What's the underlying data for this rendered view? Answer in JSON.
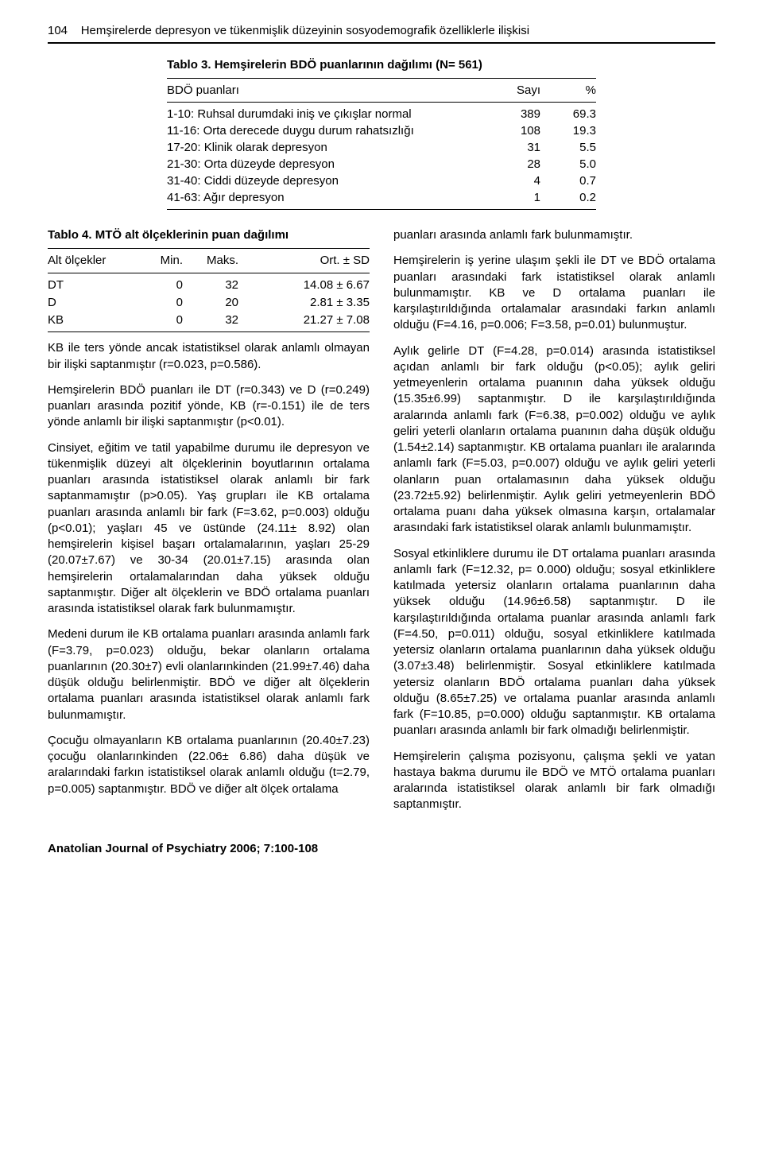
{
  "header": {
    "page_num": "104",
    "title": "Hemşirelerde depresyon ve tükenmişlik düzeyinin sosyodemografik özelliklerle ilişkisi"
  },
  "table3": {
    "title": "Tablo 3. Hemşirelerin BDÖ puanlarının dağılımı (N= 561)",
    "head": {
      "c1": "BDÖ puanları",
      "c2": "Sayı",
      "c3": "%"
    },
    "rows": [
      {
        "label": "1-10: Ruhsal durumdaki iniş ve çıkışlar normal",
        "n": "389",
        "p": "69.3"
      },
      {
        "label": "11-16: Orta derecede duygu durum rahatsızlığı",
        "n": "108",
        "p": "19.3"
      },
      {
        "label": "17-20: Klinik olarak depresyon",
        "n": "31",
        "p": "5.5"
      },
      {
        "label": "21-30: Orta düzeyde depresyon",
        "n": "28",
        "p": "5.0"
      },
      {
        "label": "31-40: Ciddi düzeyde depresyon",
        "n": "4",
        "p": "0.7"
      },
      {
        "label": "41-63: Ağır depresyon",
        "n": "1",
        "p": "0.2"
      }
    ]
  },
  "table4": {
    "title": "Tablo 4. MTÖ alt ölçeklerinin puan dağılımı",
    "head": {
      "c1": "Alt ölçekler",
      "c2": "Min.",
      "c3": "Maks.",
      "c4": "Ort. ± SD"
    },
    "rows": [
      {
        "c1": "DT",
        "c2": "0",
        "c3": "32",
        "c4": "14.08 ± 6.67"
      },
      {
        "c1": "D",
        "c2": "0",
        "c3": "20",
        "c4": "2.81 ± 3.35"
      },
      {
        "c1": "KB",
        "c2": "0",
        "c3": "32",
        "c4": "21.27 ± 7.08"
      }
    ]
  },
  "left_paras": [
    "KB ile ters yönde ancak istatistiksel olarak anlamlı olmayan bir ilişki saptanmıştır (r=0.023, p=0.586).",
    "Hemşirelerin BDÖ puanları ile DT (r=0.343) ve D (r=0.249) puanları arasında pozitif yönde, KB (r=-0.151) ile de ters yönde anlamlı bir ilişki saptanmıştır (p<0.01).",
    "Cinsiyet, eğitim ve tatil yapabilme durumu ile depresyon ve tükenmişlik düzeyi alt ölçeklerinin boyutlarının ortalama puanları arasında istatistiksel olarak anlamlı bir fark saptanmamıştır (p>0.05). Yaş grupları ile KB ortalama puanları arasında anlamlı bir fark (F=3.62, p=0.003) olduğu (p<0.01); yaşları 45 ve üstünde (24.11± 8.92) olan hemşirelerin kişisel başarı ortalamalarının, yaşları 25-29 (20.07±7.67) ve 30-34 (20.01±7.15) arasında olan hemşirelerin ortalamalarından daha yüksek olduğu saptanmıştır. Diğer alt ölçeklerin ve BDÖ ortalama puanları arasında istatistiksel olarak fark bulunmamıştır.",
    "Medeni durum ile KB ortalama puanları arasında anlamlı fark (F=3.79, p=0.023) olduğu, bekar olanların ortalama puanlarının (20.30±7) evli olanlarınkinden (21.99±7.46) daha düşük olduğu belirlenmiştir. BDÖ ve diğer alt ölçeklerin ortalama puanları arasında istatistiksel olarak anlamlı fark bulunmamıştır.",
    "Çocuğu olmayanların KB ortalama puanlarının (20.40±7.23) çocuğu olanlarınkinden (22.06± 6.86) daha düşük ve aralarındaki farkın istatistiksel olarak anlamlı olduğu (t=2.79, p=0.005) saptanmıştır. BDÖ ve diğer alt ölçek ortalama"
  ],
  "right_paras": [
    "puanları arasında anlamlı fark bulunmamıştır.",
    "Hemşirelerin iş yerine ulaşım şekli ile DT ve BDÖ ortalama puanları arasındaki fark istatistiksel olarak anlamlı bulunmamıştır. KB ve D ortalama puanları ile karşılaştırıldığında ortalamalar arasındaki farkın anlamlı olduğu (F=4.16, p=0.006; F=3.58, p=0.01) bulunmuştur.",
    "Aylık gelirle DT (F=4.28, p=0.014) arasında istatistiksel açıdan anlamlı bir fark olduğu (p<0.05); aylık geliri yetmeyenlerin ortalama puanının daha yüksek olduğu (15.35±6.99) saptanmıştır. D ile karşılaştırıldığında aralarında anlamlı fark (F=6.38, p=0.002) olduğu ve aylık geliri yeterli olanların ortalama puanının daha düşük olduğu (1.54±2.14) saptanmıştır. KB ortalama puanları ile aralarında anlamlı fark (F=5.03, p=0.007) olduğu ve aylık geliri yeterli olanların puan ortalamasının daha yüksek olduğu (23.72±5.92) belirlenmiştir. Aylık geliri yetmeyenlerin BDÖ ortalama puanı daha yüksek olmasına karşın, ortalamalar arasındaki fark istatistiksel olarak anlamlı bulunmamıştır.",
    "Sosyal etkinliklere durumu ile DT ortalama puanları arasında anlamlı fark (F=12.32, p= 0.000) olduğu; sosyal etkinliklere katılmada yetersiz olanların ortalama puanlarının daha yüksek olduğu (14.96±6.58) saptanmıştır. D ile karşılaştırıldığında ortalama puanlar arasında anlamlı fark (F=4.50, p=0.011) olduğu, sosyal etkinliklere katılmada yetersiz olanların ortalama puanlarının daha yüksek olduğu (3.07±3.48) belirlenmiştir. Sosyal etkinliklere katılmada yetersiz olanların BDÖ ortalama puanları daha yüksek olduğu (8.65±7.25) ve ortalama puanlar arasında anlamlı fark (F=10.85, p=0.000) olduğu saptanmıştır. KB ortalama puanları arasında anlamlı bir fark olmadığı belirlenmiştir.",
    "Hemşirelerin çalışma pozisyonu, çalışma şekli ve yatan hastaya bakma durumu ile BDÖ ve MTÖ ortalama puanları aralarında istatistiksel olarak anlamlı bir fark olmadığı saptanmıştır."
  ],
  "footer": "Anatolian Journal of Psychiatry 2006; 7:100-108"
}
